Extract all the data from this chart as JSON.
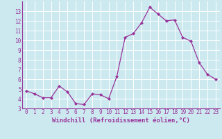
{
  "x": [
    0,
    1,
    2,
    3,
    4,
    5,
    6,
    7,
    8,
    9,
    10,
    11,
    12,
    13,
    14,
    15,
    16,
    17,
    18,
    19,
    20,
    21,
    22,
    23
  ],
  "y": [
    4.8,
    4.5,
    4.1,
    4.1,
    5.3,
    4.7,
    3.5,
    3.4,
    4.5,
    4.4,
    4.0,
    6.3,
    10.3,
    10.7,
    11.8,
    13.4,
    12.7,
    12.0,
    12.1,
    10.3,
    9.9,
    7.7,
    6.5,
    6.0
  ],
  "line_color": "#993399",
  "marker": "D",
  "marker_size": 2,
  "bg_color": "#cce9f0",
  "grid_color": "#ffffff",
  "xlabel": "Windchill (Refroidissement éolien,°C)",
  "xlabel_color": "#993399",
  "tick_color": "#993399",
  "ylim": [
    3,
    14
  ],
  "yticks": [
    3,
    4,
    5,
    6,
    7,
    8,
    9,
    10,
    11,
    12,
    13
  ],
  "xlim_min": -0.5,
  "xlim_max": 23.5,
  "xticks": [
    0,
    1,
    2,
    3,
    4,
    5,
    6,
    7,
    8,
    9,
    10,
    11,
    12,
    13,
    14,
    15,
    16,
    17,
    18,
    19,
    20,
    21,
    22,
    23
  ],
  "tick_fontsize": 5.5,
  "xlabel_fontsize": 6.5,
  "linewidth": 0.9
}
